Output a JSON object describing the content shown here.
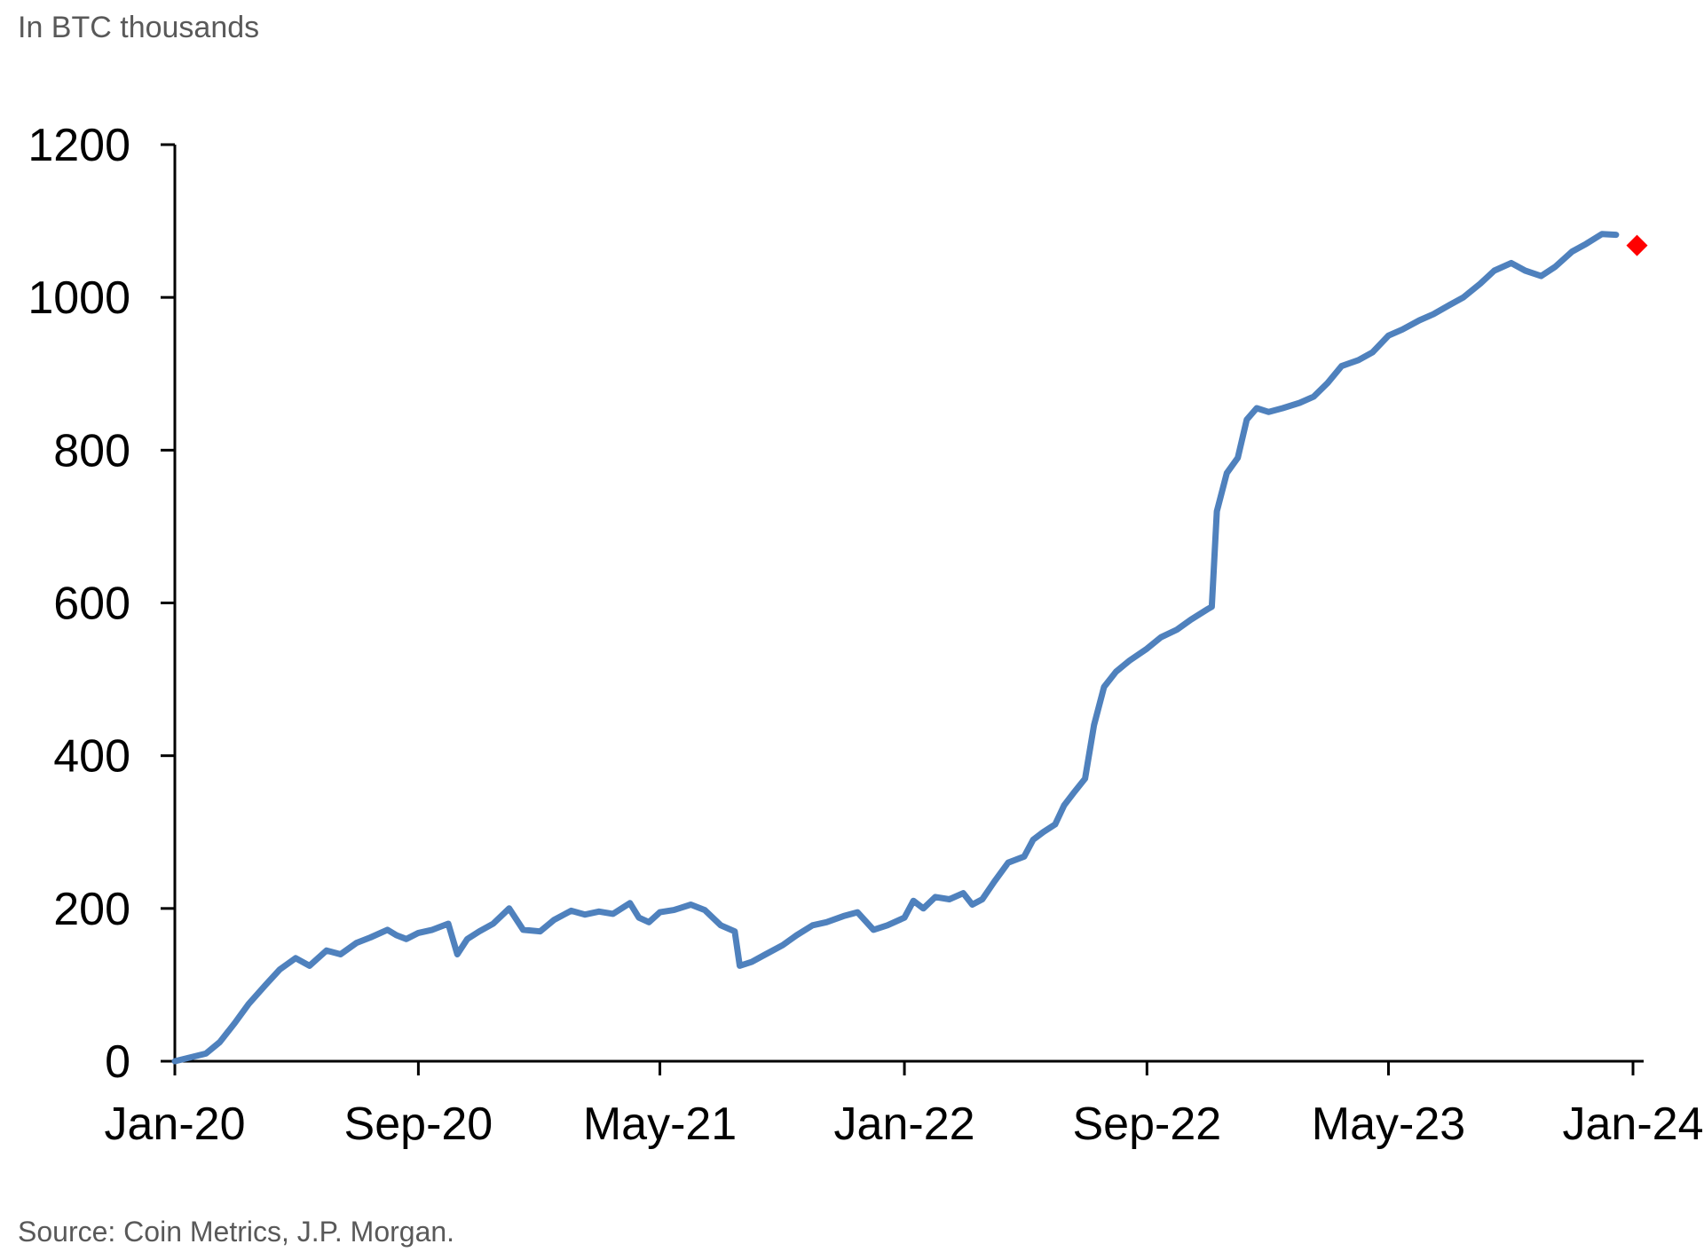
{
  "unit_label": "In BTC thousands",
  "source": "Source: Coin Metrics, J.P. Morgan.",
  "colors": {
    "line": "#4f81bd",
    "marker": "#ff0000",
    "axis": "#000000",
    "text": "#595959"
  },
  "chart_data": {
    "type": "line",
    "title": "",
    "xlabel": "",
    "ylabel": "In BTC thousands",
    "ylim": [
      0,
      1200
    ],
    "yticks": [
      0,
      200,
      400,
      600,
      800,
      1000,
      1200
    ],
    "xlim": [
      "2020-01",
      "2024-01"
    ],
    "xticks": [
      {
        "label": "Jan-20",
        "date": "2020-01"
      },
      {
        "label": "Sep-20",
        "date": "2020-09"
      },
      {
        "label": "May-21",
        "date": "2021-05"
      },
      {
        "label": "Jan-22",
        "date": "2022-01"
      },
      {
        "label": "Sep-22",
        "date": "2022-09"
      },
      {
        "label": "May-23",
        "date": "2023-05"
      },
      {
        "label": "Jan-24",
        "date": "2024-01"
      }
    ],
    "grid": false,
    "legend": "none",
    "series": [
      {
        "points": [
          [
            "2020-01",
            0
          ],
          [
            "2020-02",
            10
          ],
          [
            "2020-02-15",
            25
          ],
          [
            "2020-03",
            50
          ],
          [
            "2020-03-15",
            75
          ],
          [
            "2020-04",
            100
          ],
          [
            "2020-04-15",
            120
          ],
          [
            "2020-05",
            135
          ],
          [
            "2020-05-15",
            125
          ],
          [
            "2020-06",
            145
          ],
          [
            "2020-06-15",
            140
          ],
          [
            "2020-07",
            155
          ],
          [
            "2020-07-15",
            162
          ],
          [
            "2020-08",
            172
          ],
          [
            "2020-08-10",
            165
          ],
          [
            "2020-08-20",
            160
          ],
          [
            "2020-09",
            168
          ],
          [
            "2020-09-15",
            172
          ],
          [
            "2020-10",
            180
          ],
          [
            "2020-10-10",
            140
          ],
          [
            "2020-10-20",
            160
          ],
          [
            "2020-11",
            170
          ],
          [
            "2020-11-15",
            180
          ],
          [
            "2020-12",
            200
          ],
          [
            "2020-12-15",
            172
          ],
          [
            "2021-01",
            170
          ],
          [
            "2021-01-15",
            185
          ],
          [
            "2021-02",
            197
          ],
          [
            "2021-02-15",
            192
          ],
          [
            "2021-03",
            196
          ],
          [
            "2021-03-15",
            193
          ],
          [
            "2021-04",
            207
          ],
          [
            "2021-04-10",
            188
          ],
          [
            "2021-04-20",
            182
          ],
          [
            "2021-05",
            195
          ],
          [
            "2021-05-15",
            198
          ],
          [
            "2021-06",
            205
          ],
          [
            "2021-06-15",
            198
          ],
          [
            "2021-07",
            178
          ],
          [
            "2021-07-15",
            170
          ],
          [
            "2021-07-20",
            125
          ],
          [
            "2021-08",
            130
          ],
          [
            "2021-08-15",
            140
          ],
          [
            "2021-09",
            152
          ],
          [
            "2021-09-15",
            165
          ],
          [
            "2021-10",
            178
          ],
          [
            "2021-10-15",
            182
          ],
          [
            "2021-11",
            190
          ],
          [
            "2021-11-15",
            195
          ],
          [
            "2021-12",
            172
          ],
          [
            "2021-12-15",
            178
          ],
          [
            "2022-01",
            188
          ],
          [
            "2022-01-10",
            210
          ],
          [
            "2022-01-20",
            200
          ],
          [
            "2022-02",
            215
          ],
          [
            "2022-02-15",
            212
          ],
          [
            "2022-03",
            220
          ],
          [
            "2022-03-10",
            205
          ],
          [
            "2022-03-20",
            212
          ],
          [
            "2022-04",
            235
          ],
          [
            "2022-04-15",
            260
          ],
          [
            "2022-05",
            268
          ],
          [
            "2022-05-10",
            290
          ],
          [
            "2022-05-20",
            300
          ],
          [
            "2022-06",
            310
          ],
          [
            "2022-06-10",
            335
          ],
          [
            "2022-06-20",
            352
          ],
          [
            "2022-07",
            370
          ],
          [
            "2022-07-10",
            440
          ],
          [
            "2022-07-20",
            490
          ],
          [
            "2022-08",
            510
          ],
          [
            "2022-08-15",
            525
          ],
          [
            "2022-09",
            540
          ],
          [
            "2022-09-15",
            555
          ],
          [
            "2022-10",
            565
          ],
          [
            "2022-10-15",
            578
          ],
          [
            "2022-11",
            592
          ],
          [
            "2022-11-05",
            595
          ],
          [
            "2022-11-10",
            720
          ],
          [
            "2022-11-20",
            770
          ],
          [
            "2022-12",
            790
          ],
          [
            "2022-12-10",
            840
          ],
          [
            "2022-12-20",
            855
          ],
          [
            "2023-01",
            850
          ],
          [
            "2023-01-15",
            855
          ],
          [
            "2023-02",
            862
          ],
          [
            "2023-02-15",
            870
          ],
          [
            "2023-03",
            888
          ],
          [
            "2023-03-15",
            910
          ],
          [
            "2023-04",
            918
          ],
          [
            "2023-04-15",
            928
          ],
          [
            "2023-05",
            950
          ],
          [
            "2023-05-15",
            958
          ],
          [
            "2023-06",
            970
          ],
          [
            "2023-06-15",
            978
          ],
          [
            "2023-07",
            990
          ],
          [
            "2023-07-15",
            1000
          ],
          [
            "2023-08",
            1018
          ],
          [
            "2023-08-15",
            1035
          ],
          [
            "2023-09",
            1045
          ],
          [
            "2023-09-15",
            1035
          ],
          [
            "2023-10",
            1028
          ],
          [
            "2023-10-15",
            1040
          ],
          [
            "2023-11",
            1060
          ],
          [
            "2023-11-15",
            1070
          ],
          [
            "2023-12",
            1083
          ],
          [
            "2023-12-15",
            1082
          ]
        ]
      }
    ],
    "marker": {
      "date": "2024-01-05",
      "value": 1068,
      "shape": "diamond"
    }
  }
}
